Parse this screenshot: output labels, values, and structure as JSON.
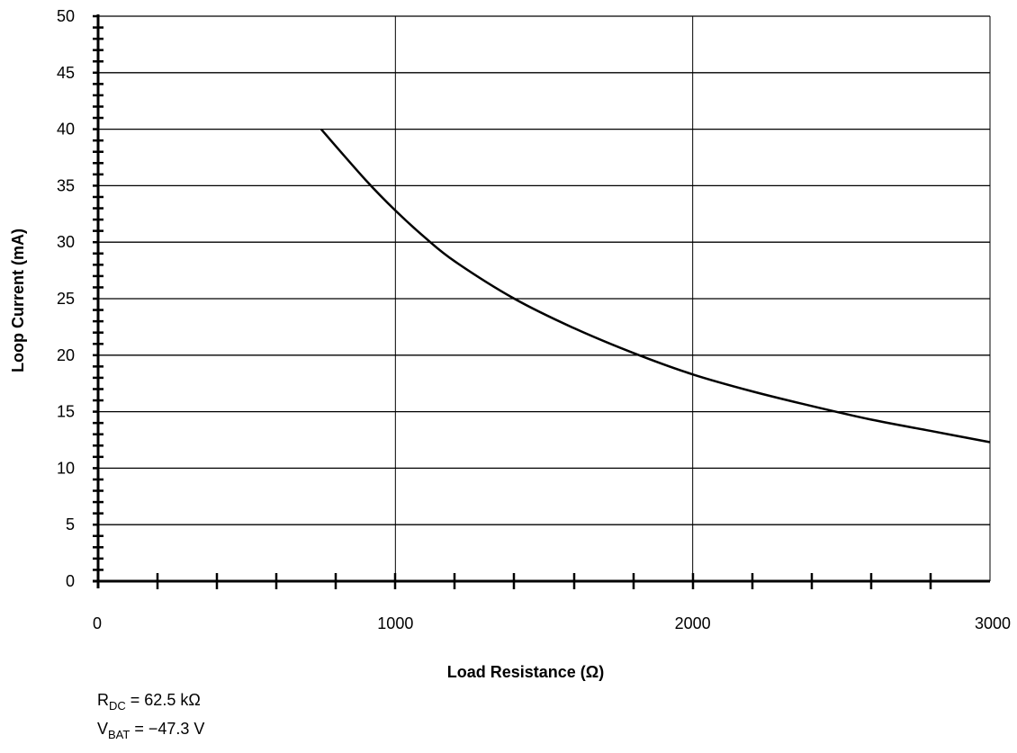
{
  "chart_data": {
    "type": "line",
    "title": "",
    "xlabel": "Load Resistance (Ω)",
    "ylabel": "Loop Current (mA)",
    "xlim": [
      0,
      3000
    ],
    "ylim": [
      0,
      50
    ],
    "x_ticks": [
      "0",
      "1000",
      "2000",
      "3000"
    ],
    "y_ticks": [
      "0",
      "5",
      "10",
      "15",
      "20",
      "25",
      "30",
      "35",
      "40",
      "45",
      "50"
    ],
    "grid": true,
    "series": [
      {
        "x": [
          750,
          900,
          1000,
          1100,
          1200,
          1400,
          1600,
          1800,
          2000,
          2200,
          2400,
          2600,
          2800,
          3000
        ],
        "values": [
          40,
          35.5,
          32.8,
          30.4,
          28.3,
          25.0,
          22.4,
          20.2,
          18.3,
          16.8,
          15.5,
          14.3,
          13.3,
          12.3
        ]
      }
    ]
  },
  "notes": [
    {
      "base": "R",
      "sub": "DC",
      "rest": " = 62.5 kΩ"
    },
    {
      "base": "V",
      "sub": "BAT",
      "rest": " = −47.3 V"
    }
  ]
}
